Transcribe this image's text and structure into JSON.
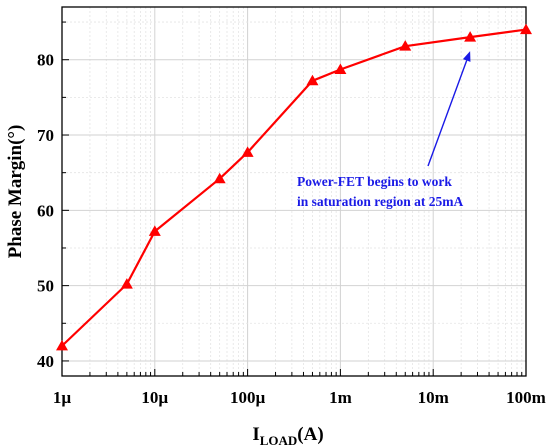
{
  "chart_data": {
    "type": "line",
    "x_scale": "log",
    "x": [
      1e-06,
      5e-06,
      1e-05,
      5e-05,
      0.0001,
      0.0005,
      0.001,
      0.005,
      0.025,
      0.1
    ],
    "series": [
      {
        "values": [
          42.0,
          50.2,
          57.2,
          64.2,
          67.7,
          77.2,
          78.7,
          81.8,
          83.0,
          84.0
        ]
      }
    ],
    "xlim": [
      1e-06,
      0.1
    ],
    "ylim": [
      38,
      87
    ],
    "x_ticks": [
      {
        "value": 1e-06,
        "label": "1µ"
      },
      {
        "value": 1e-05,
        "label": "10µ"
      },
      {
        "value": 0.0001,
        "label": "100µ"
      },
      {
        "value": 0.001,
        "label": "1m"
      },
      {
        "value": 0.01,
        "label": "10m"
      },
      {
        "value": 0.1,
        "label": "100m"
      }
    ],
    "y_ticks": [
      40,
      50,
      60,
      70,
      80
    ],
    "ylabel": "Phase Margin(°)",
    "xlabel_main": "I",
    "xlabel_sub": "LOAD",
    "xlabel_unit": "(A)",
    "grid": true,
    "line_color": "#ff0000",
    "annotation": {
      "line1": "Power-FET begins to work",
      "line2": "in saturation region at 25mA",
      "color": "#1a1ae6",
      "target_x": 0.025,
      "target_y": 83.0
    }
  }
}
